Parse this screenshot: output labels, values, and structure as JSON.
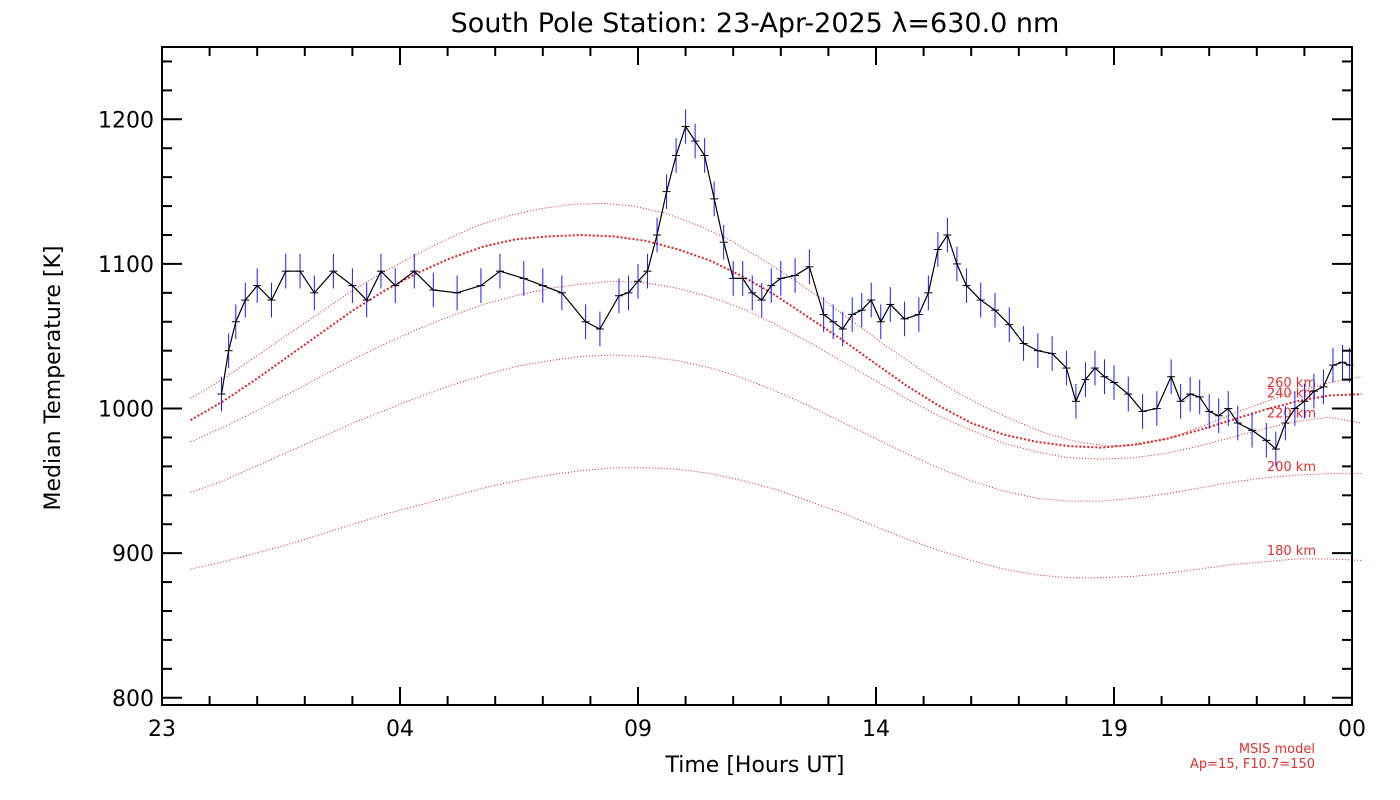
{
  "chart_data": {
    "type": "line",
    "title": "South Pole Station: 23-Apr-2025 λ=630.0 nm",
    "xlabel": "Time [Hours UT]",
    "ylabel": "Median Temperature [K]",
    "xlim": [
      "2025-04-22T23:00",
      "2025-04-24T00:00"
    ],
    "ylim": [
      795,
      1250
    ],
    "x_ticks": [
      "23",
      "04",
      "09",
      "14",
      "19",
      "00"
    ],
    "y_ticks": [
      800,
      900,
      1000,
      1100,
      1200
    ],
    "grid": false,
    "colors": {
      "data_line": "#000000",
      "error_bars": "#1a1aff",
      "model": "#e02020",
      "axes": "#000000"
    },
    "series": [
      {
        "x_format": "decimal hours UT on 23-Apr-2025",
        "x": [
          0.25,
          0.4,
          0.55,
          0.75,
          1.0,
          1.3,
          1.6,
          1.9,
          2.2,
          2.6,
          3.0,
          3.3,
          3.6,
          3.9,
          4.3,
          4.7,
          5.2,
          5.7,
          6.1,
          6.6,
          7.0,
          7.4,
          7.9,
          8.2,
          8.6,
          8.8,
          9.0,
          9.2,
          9.4,
          9.6,
          9.8,
          10.0,
          10.2,
          10.4,
          10.6,
          10.8,
          11.0,
          11.2,
          11.4,
          11.6,
          11.8,
          12.0,
          12.3,
          12.6,
          12.9,
          13.1,
          13.3,
          13.5,
          13.7,
          13.9,
          14.1,
          14.3,
          14.6,
          14.9,
          15.1,
          15.3,
          15.5,
          15.7,
          15.9,
          16.2,
          16.5,
          16.8,
          17.1,
          17.4,
          17.7,
          18.0,
          18.2,
          18.4,
          18.6,
          18.8,
          19.0,
          19.3,
          19.6,
          19.9,
          20.2,
          20.4,
          20.6,
          20.8,
          21.0,
          21.2,
          21.4,
          21.6,
          21.9,
          22.2,
          22.4,
          22.6,
          22.8,
          23.0,
          23.2,
          23.4,
          23.6,
          23.8,
          23.95
        ],
        "y": [
          1010,
          1040,
          1060,
          1075,
          1085,
          1075,
          1095,
          1095,
          1080,
          1095,
          1085,
          1075,
          1095,
          1085,
          1095,
          1082,
          1080,
          1085,
          1095,
          1090,
          1085,
          1080,
          1060,
          1055,
          1078,
          1080,
          1088,
          1095,
          1120,
          1150,
          1175,
          1195,
          1185,
          1175,
          1145,
          1115,
          1090,
          1090,
          1080,
          1075,
          1085,
          1090,
          1092,
          1098,
          1065,
          1060,
          1055,
          1065,
          1068,
          1075,
          1060,
          1072,
          1062,
          1065,
          1080,
          1110,
          1120,
          1100,
          1085,
          1075,
          1068,
          1058,
          1045,
          1040,
          1038,
          1028,
          1005,
          1020,
          1028,
          1022,
          1018,
          1010,
          998,
          1000,
          1022,
          1005,
          1010,
          1008,
          998,
          995,
          1000,
          990,
          985,
          978,
          972,
          990,
          1000,
          1005,
          1012,
          1015,
          1030,
          1032,
          1030
        ],
        "error_k": 12
      }
    ],
    "model_curves": [
      {
        "label": "260 km",
        "y": [
          1007,
          1020,
          1035,
          1050,
          1065,
          1080,
          1093,
          1105,
          1116,
          1126,
          1133,
          1138,
          1141,
          1142,
          1140,
          1135,
          1127,
          1117,
          1104,
          1090,
          1075,
          1059,
          1043,
          1028,
          1014,
          1002,
          992,
          983,
          977,
          974,
          975,
          980,
          988,
          997,
          1005,
          1012,
          1018,
          1022
        ]
      },
      {
        "label": "240 km",
        "y": [
          992,
          1005,
          1020,
          1036,
          1052,
          1068,
          1082,
          1094,
          1104,
          1112,
          1117,
          1119,
          1120,
          1119,
          1116,
          1110,
          1102,
          1091,
          1078,
          1063,
          1048,
          1032,
          1016,
          1002,
          990,
          982,
          977,
          974,
          973,
          975,
          979,
          985,
          992,
          999,
          1005,
          1009,
          1010
        ]
      },
      {
        "label": "220 km",
        "y": [
          977,
          987,
          998,
          1010,
          1022,
          1034,
          1045,
          1055,
          1064,
          1072,
          1078,
          1083,
          1086,
          1088,
          1087,
          1083,
          1077,
          1069,
          1058,
          1046,
          1033,
          1020,
          1007,
          995,
          985,
          976,
          970,
          966,
          965,
          966,
          969,
          974,
          980,
          986,
          991,
          994,
          990
        ]
      },
      {
        "label": "200 km",
        "y": [
          942,
          950,
          960,
          970,
          980,
          990,
          999,
          1008,
          1016,
          1023,
          1029,
          1033,
          1036,
          1037,
          1036,
          1033,
          1028,
          1021,
          1012,
          1002,
          991,
          980,
          969,
          959,
          950,
          943,
          938,
          936,
          936,
          938,
          941,
          945,
          949,
          952,
          954,
          955,
          955
        ]
      },
      {
        "label": "180 km",
        "y": [
          889,
          894,
          900,
          906,
          913,
          920,
          927,
          933,
          939,
          945,
          950,
          954,
          957,
          959,
          959,
          958,
          955,
          950,
          944,
          936,
          928,
          919,
          910,
          902,
          895,
          889,
          885,
          883,
          883,
          884,
          886,
          889,
          892,
          894,
          896,
          896,
          895
        ]
      }
    ],
    "model_x_range": [
      -0.4,
      24.2
    ],
    "footnote": [
      "MSIS model",
      "Ap=15, F10.7=150"
    ]
  }
}
